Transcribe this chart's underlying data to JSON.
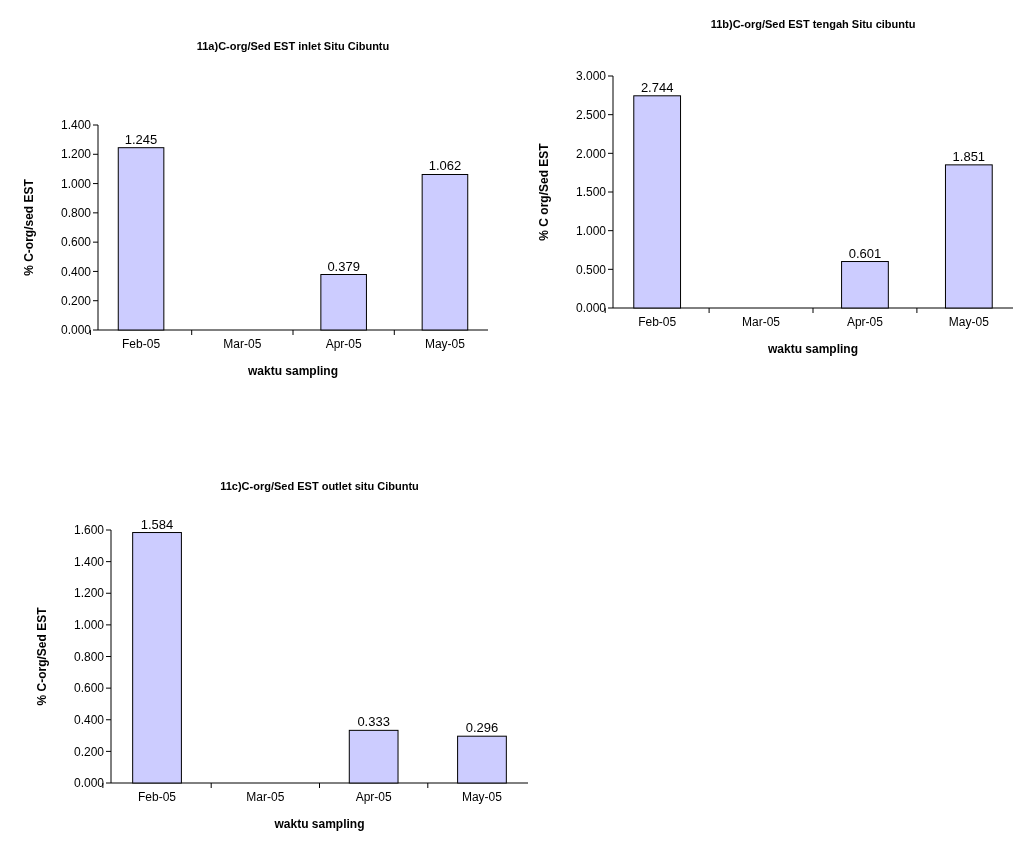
{
  "chart_data": [
    {
      "type": "bar",
      "title": "11a)C-org/Sed EST inlet Situ Cibuntu",
      "xlabel": "waktu sampling",
      "ylabel": "% C-org/sed EST",
      "categories": [
        "Feb-05",
        "Mar-05",
        "Apr-05",
        "May-05"
      ],
      "color": "#ccccff",
      "values": [
        1.245,
        null,
        0.379,
        1.062
      ],
      "data_labels": true,
      "ylim": [
        0,
        1.4
      ],
      "yticks": [
        {
          "value": 0,
          "label": "0.000"
        },
        {
          "value": 0.2,
          "label": "0.200"
        },
        {
          "value": 0.4,
          "label": "0.400"
        },
        {
          "value": 0.6,
          "label": "0.600"
        },
        {
          "value": 0.8,
          "label": "0.800"
        },
        {
          "value": 1,
          "label": "1.000"
        },
        {
          "value": 1.2,
          "label": "1.200"
        },
        {
          "value": 1.4,
          "label": "1.400"
        }
      ]
    },
    {
      "type": "bar",
      "title": "11b)C-org/Sed EST tengah Situ cibuntu",
      "xlabel": "waktu sampling",
      "ylabel": "% C org/Sed EST",
      "categories": [
        "Feb-05",
        "Mar-05",
        "Apr-05",
        "May-05"
      ],
      "color": "#ccccff",
      "values": [
        2.744,
        null,
        0.601,
        1.851
      ],
      "data_labels": true,
      "ylim": [
        0,
        3
      ],
      "yticks": [
        {
          "value": 0,
          "label": "0.000"
        },
        {
          "value": 0.5,
          "label": "0.500"
        },
        {
          "value": 1,
          "label": "1.000"
        },
        {
          "value": 1.5,
          "label": "1.500"
        },
        {
          "value": 2,
          "label": "2.000"
        },
        {
          "value": 2.5,
          "label": "2.500"
        },
        {
          "value": 3,
          "label": "3.000"
        }
      ]
    },
    {
      "type": "bar",
      "title": "11c)C-org/Sed EST outlet situ Cibuntu",
      "xlabel": "waktu sampling",
      "ylabel": "% C-org/Sed EST",
      "categories": [
        "Feb-05",
        "Mar-05",
        "Apr-05",
        "May-05"
      ],
      "color": "#ccccff",
      "values": [
        1.584,
        null,
        0.333,
        0.296
      ],
      "data_labels": true,
      "ylim": [
        0,
        1.6
      ],
      "yticks": [
        {
          "value": 0,
          "label": "0.000"
        },
        {
          "value": 0.2,
          "label": "0.200"
        },
        {
          "value": 0.4,
          "label": "0.400"
        },
        {
          "value": 0.6,
          "label": "0.600"
        },
        {
          "value": 0.8,
          "label": "0.800"
        },
        {
          "value": 1,
          "label": "1.000"
        },
        {
          "value": 1.2,
          "label": "1.200"
        },
        {
          "value": 1.4,
          "label": "1.400"
        },
        {
          "value": 1.6,
          "label": "1.600"
        }
      ]
    }
  ]
}
